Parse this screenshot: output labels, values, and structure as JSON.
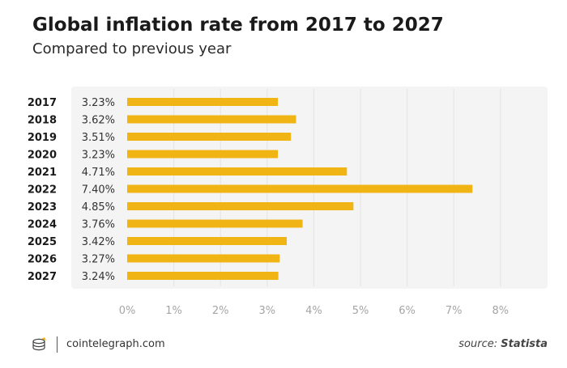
{
  "chart_data": {
    "type": "bar",
    "orientation": "horizontal",
    "title": "Global inflation rate from 2017 to 2027",
    "subtitle": "Compared to previous year",
    "categories": [
      "2017",
      "2018",
      "2019",
      "2020",
      "2021",
      "2022",
      "2023",
      "2024",
      "2025",
      "2026",
      "2027"
    ],
    "values": [
      3.23,
      3.62,
      3.51,
      3.23,
      4.71,
      7.4,
      4.85,
      3.76,
      3.42,
      3.27,
      3.24
    ],
    "value_labels": [
      "3.23%",
      "3.62%",
      "3.51%",
      "3.23%",
      "4.71%",
      "7.40%",
      "4.85%",
      "3.76%",
      "3.42%",
      "3.27%",
      "3.24%"
    ],
    "xlim": [
      0,
      8
    ],
    "xticks": [
      0,
      1,
      2,
      3,
      4,
      5,
      6,
      7,
      8
    ],
    "xtick_labels": [
      "0%",
      "1%",
      "2%",
      "3%",
      "4%",
      "5%",
      "6%",
      "7%",
      "8%"
    ],
    "bar_color": "#f0b514",
    "grid": true
  },
  "footer": {
    "site": "cointelegraph.com",
    "source_prefix": "source:",
    "source_name": "Statista"
  }
}
